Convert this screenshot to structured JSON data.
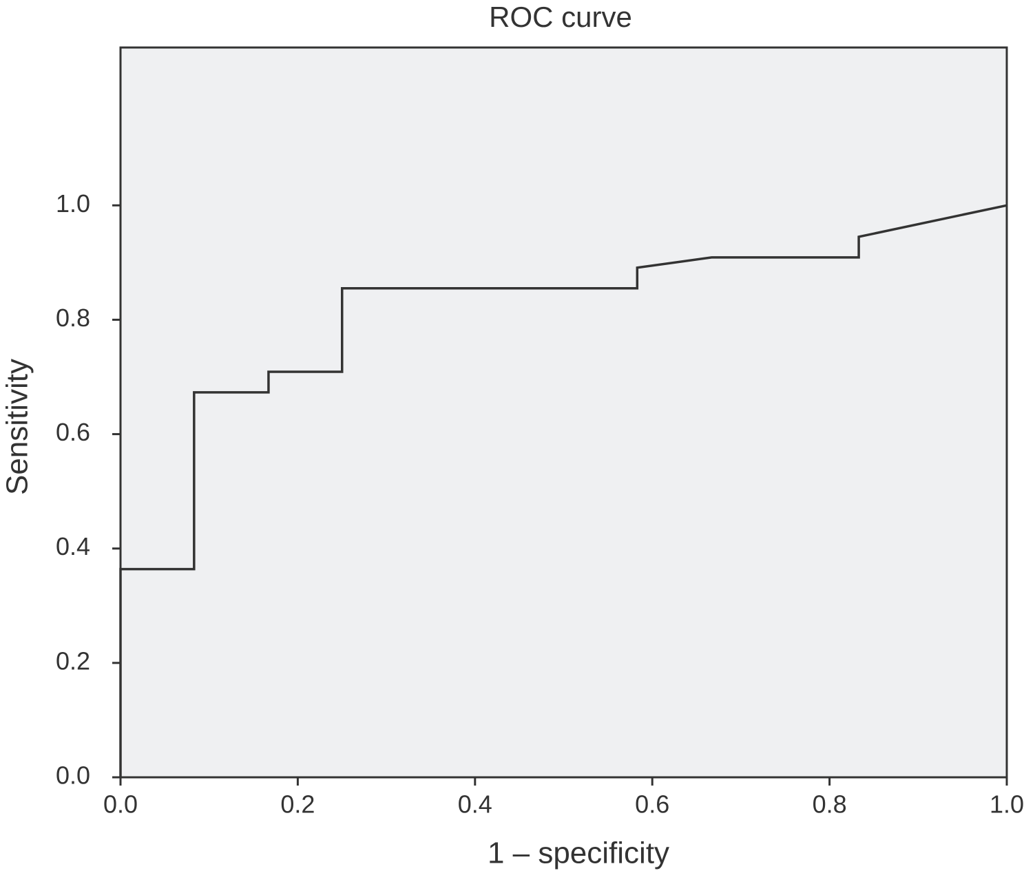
{
  "chart_data": {
    "type": "line",
    "title": "ROC curve",
    "x_label": "1 – specificity",
    "y_label": "Sensitivity",
    "x": [
      0,
      0,
      0.083,
      0.083,
      0.167,
      0.167,
      0.25,
      0.25,
      0.583,
      0.583,
      0.667,
      0.833,
      0.833,
      1
    ],
    "values": [
      0,
      0.364,
      0.364,
      0.673,
      0.673,
      0.709,
      0.709,
      0.855,
      0.855,
      0.891,
      0.909,
      0.909,
      0.945,
      1
    ],
    "color": "#333333",
    "xlim": [
      0,
      1
    ],
    "ylim": [
      0,
      1.276
    ],
    "xticks": [
      {
        "value": 0,
        "label": "0.0"
      },
      0.2,
      0.4,
      0.6,
      0.8,
      {
        "value": 1,
        "label": "1.0"
      }
    ],
    "yticks": [
      {
        "value": 0,
        "label": "0.0"
      },
      0.2,
      0.4,
      0.6,
      0.8,
      {
        "value": 1,
        "label": "1.0"
      }
    ],
    "background": "#eff0f2"
  }
}
